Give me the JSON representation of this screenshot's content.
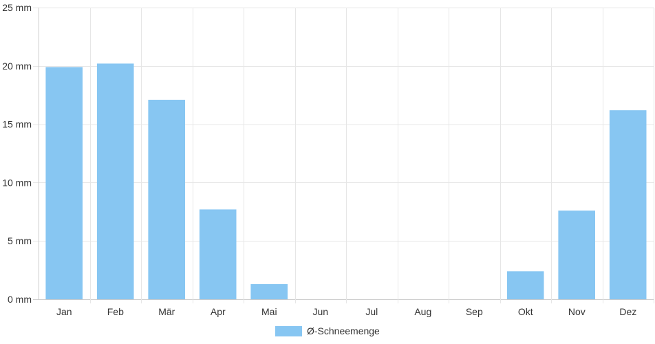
{
  "chart_data": {
    "type": "bar",
    "categories": [
      "Jan",
      "Feb",
      "Mär",
      "Apr",
      "Mai",
      "Jun",
      "Jul",
      "Aug",
      "Sep",
      "Okt",
      "Nov",
      "Dez"
    ],
    "series": [
      {
        "name": "Ø-Schneemenge",
        "values": [
          19.9,
          20.2,
          17.1,
          7.7,
          1.3,
          0,
          0,
          0,
          0,
          2.4,
          7.6,
          16.2
        ]
      }
    ],
    "y_ticks": [
      "0 mm",
      "5 mm",
      "10 mm",
      "15 mm",
      "20 mm",
      "25 mm"
    ],
    "ylim": [
      0,
      25
    ],
    "y_unit": "mm",
    "grid": true,
    "legend_position": "bottom-center",
    "colors": {
      "bar": "#87c6f2",
      "grid": "#e6e6e6",
      "axis": "#cccccc",
      "text": "#333333"
    }
  }
}
